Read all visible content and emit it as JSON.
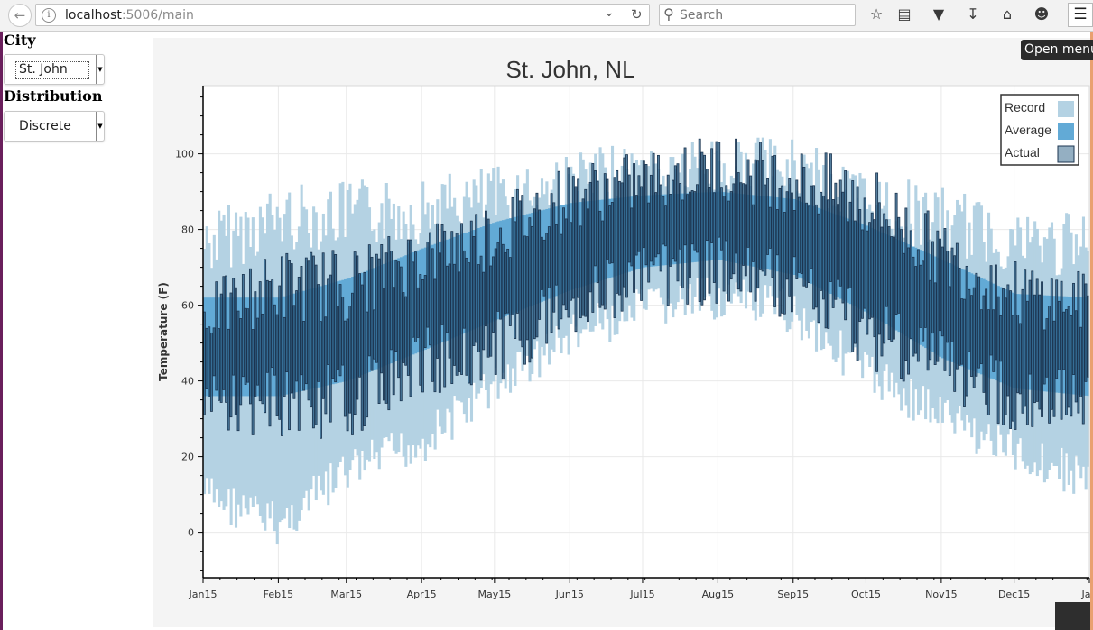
{
  "browser": {
    "url_host": "localhost",
    "url_path": ":5006/main",
    "search_placeholder": "Search",
    "tooltip": "Open menu"
  },
  "widgets": {
    "city_label": "City",
    "city_value": "St. John",
    "distribution_label": "Distribution",
    "distribution_value": "Discrete"
  },
  "colors": {
    "record": "#b4d2e3",
    "average": "#62aad6",
    "actual_fill": "#2a5f86",
    "actual_stroke": "#1c3550"
  },
  "chart_data": {
    "type": "bar",
    "title": "St. John, NL",
    "ylabel": "Temperature (F)",
    "xlabel": "",
    "ylim": [
      -12,
      118
    ],
    "yticks": [
      0,
      20,
      40,
      60,
      80,
      100
    ],
    "x_tick_labels": [
      "Jan15",
      "Feb15",
      "Mar15",
      "Apr15",
      "May15",
      "Jun15",
      "Jul15",
      "Aug15",
      "Sep15",
      "Oct15",
      "Nov15",
      "Dec15",
      "Jan"
    ],
    "x_tick_days": [
      0,
      31,
      59,
      90,
      120,
      151,
      181,
      212,
      243,
      273,
      304,
      334,
      365
    ],
    "grid": true,
    "legend_position": "top-right",
    "legend": [
      "Record",
      "Average",
      "Actual"
    ],
    "series": [
      {
        "name": "Record",
        "description_of_bands": "daily record low to record high",
        "anchor_days": [
          0,
          31,
          59,
          90,
          120,
          151,
          181,
          212,
          243,
          273,
          304,
          334,
          365
        ],
        "anchor_low": [
          16,
          8,
          22,
          30,
          45,
          58,
          65,
          68,
          64,
          48,
          37,
          27,
          20
        ],
        "anchor_high": [
          85,
          92,
          93,
          94,
          97,
          101,
          103,
          105,
          104,
          96,
          91,
          86,
          84
        ]
      },
      {
        "name": "Average",
        "anchor_days": [
          0,
          31,
          59,
          90,
          120,
          151,
          181,
          212,
          243,
          273,
          304,
          334,
          365
        ],
        "anchor_low": [
          36,
          36,
          40,
          48,
          56,
          64,
          70,
          72,
          68,
          58,
          46,
          38,
          36
        ],
        "anchor_high": [
          62,
          62,
          67,
          75,
          82,
          87,
          89,
          90,
          88,
          81,
          72,
          63,
          62
        ]
      },
      {
        "name": "Actual",
        "anchor_days": [
          0,
          31,
          59,
          90,
          120,
          151,
          181,
          212,
          243,
          273,
          304,
          334,
          365
        ],
        "anchor_low": [
          38,
          40,
          40,
          50,
          54,
          66,
          72,
          74,
          70,
          60,
          50,
          40,
          40
        ],
        "anchor_high": [
          55,
          62,
          62,
          70,
          76,
          86,
          90,
          94,
          90,
          84,
          70,
          60,
          58
        ]
      }
    ]
  }
}
